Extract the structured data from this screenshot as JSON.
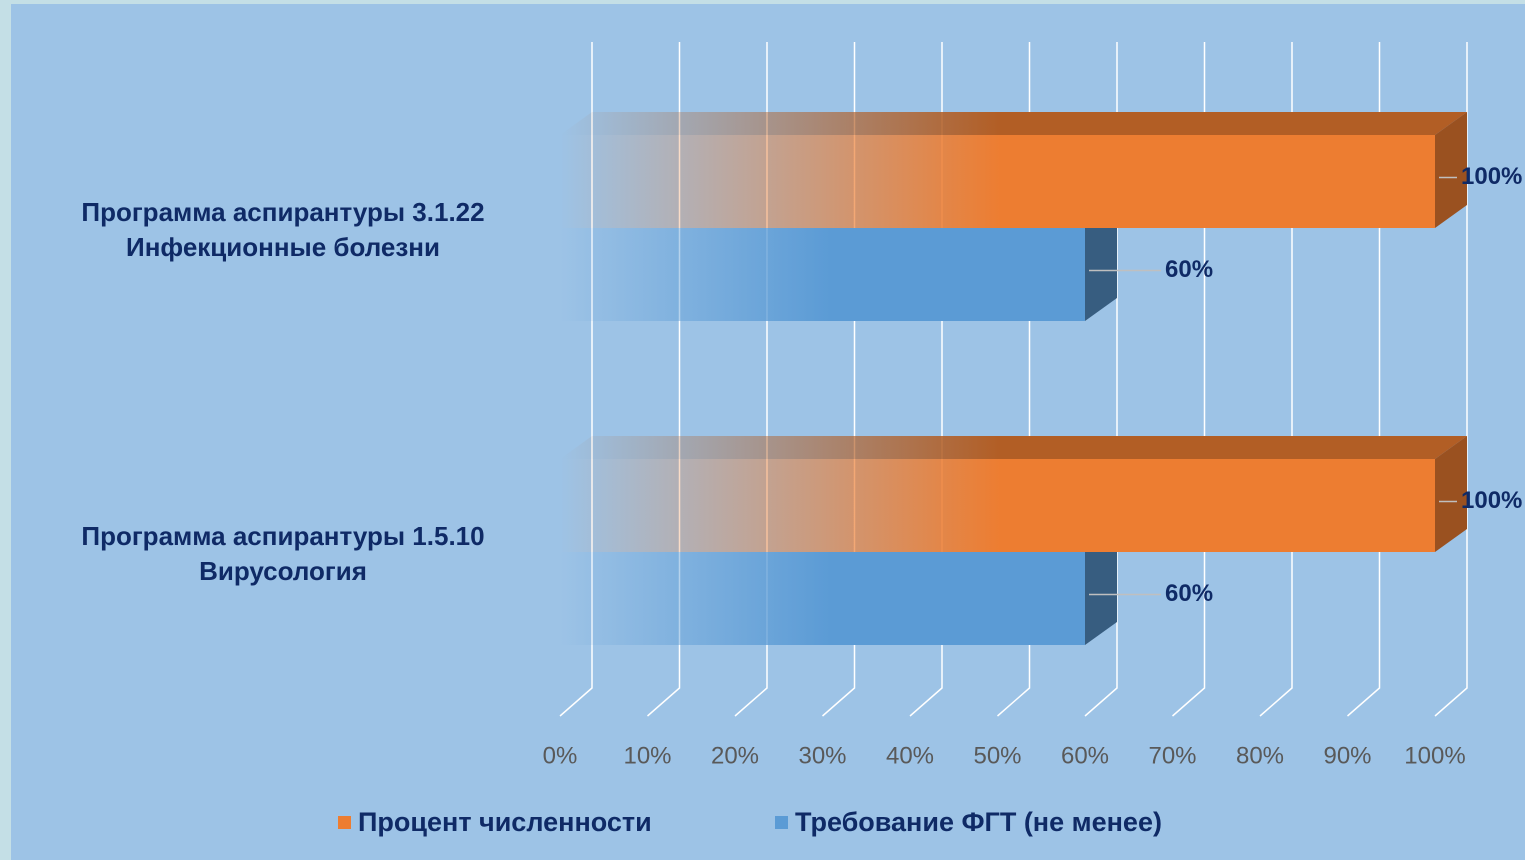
{
  "chart_data": {
    "type": "bar3d",
    "orientation": "horizontal",
    "categories": [
      "Программа аспирантуры 3.1.22\nИнфекционные болезни",
      "Программа аспирантуры 1.5.10\nВирусология"
    ],
    "series": [
      {
        "name": "Процент численности",
        "color": "#ed7d31",
        "values": [
          100,
          100
        ],
        "value_labels": [
          "100%",
          "100%"
        ]
      },
      {
        "name": "Требование ФГТ (не менее)",
        "color": "#5b9bd5",
        "values": [
          60,
          60
        ],
        "value_labels": [
          "60%",
          "60%"
        ]
      }
    ],
    "xlim": [
      0,
      100
    ],
    "xticks": [
      {
        "value": 0,
        "label": "0%"
      },
      {
        "value": 10,
        "label": "10%"
      },
      {
        "value": 20,
        "label": "20%"
      },
      {
        "value": 30,
        "label": "30%"
      },
      {
        "value": 40,
        "label": "40%"
      },
      {
        "value": 50,
        "label": "50%"
      },
      {
        "value": 60,
        "label": "60%"
      },
      {
        "value": 70,
        "label": "70%"
      },
      {
        "value": 80,
        "label": "80%"
      },
      {
        "value": 90,
        "label": "90%"
      },
      {
        "value": 100,
        "label": "100%"
      }
    ],
    "grid": true,
    "legend": "bottom"
  }
}
